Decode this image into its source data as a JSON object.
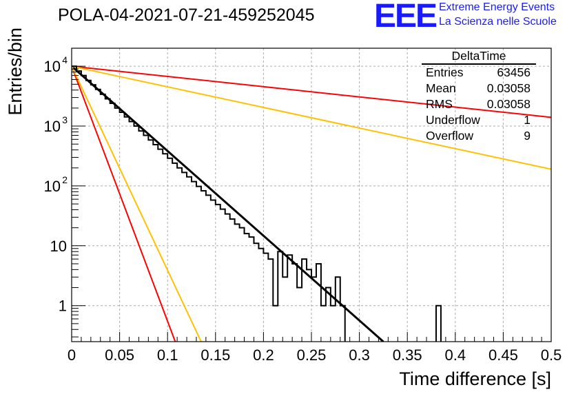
{
  "header": {
    "title": "POLA-04-2021-07-21-459252045",
    "logo_text": "EEE",
    "logo_line1": "Extreme Energy Events",
    "logo_line2": "La Scienza nelle Scuole"
  },
  "stats_box": {
    "title": "DeltaTime",
    "rows": [
      {
        "label": "Entries",
        "value": "63456"
      },
      {
        "label": "Mean",
        "value": "0.03058"
      },
      {
        "label": "RMS",
        "value": "0.03058"
      },
      {
        "label": "Underflow",
        "value": "1"
      },
      {
        "label": "Overflow",
        "value": "9"
      }
    ]
  },
  "chart_data": {
    "type": "line",
    "xlabel": "Time difference [s]",
    "ylabel": "Entries/bin",
    "xlim": [
      0,
      0.5
    ],
    "ylim": [
      0.25,
      20000
    ],
    "log_y": true,
    "grid": true,
    "x_ticks": [
      "0",
      "0.05",
      "0.1",
      "0.15",
      "0.2",
      "0.25",
      "0.3",
      "0.35",
      "0.4",
      "0.45",
      "0.5"
    ],
    "y_ticks": [
      {
        "value": 1,
        "label": "1"
      },
      {
        "value": 10,
        "label": "10"
      },
      {
        "value": 100,
        "label": "10",
        "exp": "2"
      },
      {
        "value": 1000,
        "label": "10",
        "exp": "3"
      },
      {
        "value": 10000,
        "label": "10",
        "exp": "4"
      }
    ],
    "histogram": {
      "color": "#000000",
      "bin_width": 0.005,
      "x0": 0,
      "counts": [
        10000,
        8300,
        7000,
        5800,
        4900,
        4100,
        3400,
        2850,
        2400,
        2000,
        1700,
        1420,
        1190,
        1000,
        830,
        700,
        585,
        490,
        410,
        345,
        290,
        240,
        200,
        168,
        142,
        118,
        98,
        83,
        70,
        58,
        49,
        41,
        34,
        28,
        23,
        20,
        16,
        14,
        11,
        9,
        7.5,
        6,
        1,
        8,
        3,
        7,
        5,
        2,
        6,
        4,
        3,
        5,
        1,
        2,
        1,
        3,
        1,
        0,
        0,
        0,
        0,
        0,
        0,
        0,
        0,
        0,
        0,
        0,
        0,
        0,
        0,
        0,
        0,
        0,
        0,
        0,
        1,
        0,
        0,
        0,
        0,
        0,
        0,
        0,
        0,
        0,
        0,
        0,
        0,
        0,
        0,
        0,
        0,
        0,
        0,
        0,
        0,
        0,
        0,
        0
      ]
    },
    "series": [
      {
        "color": "#000000",
        "x": [
          0,
          0.325
        ],
        "y": [
          10000,
          0.25
        ]
      },
      {
        "color": "#ff0000",
        "x": [
          0,
          0.5
        ],
        "y": [
          10000,
          1400
        ]
      },
      {
        "color": "#ffc000",
        "x": [
          0,
          0.5
        ],
        "y": [
          10000,
          190
        ]
      },
      {
        "color": "#ff0000",
        "x": [
          0,
          0.108
        ],
        "y": [
          10000,
          0.25
        ]
      },
      {
        "color": "#ffc000",
        "x": [
          0,
          0.135
        ],
        "y": [
          10000,
          0.25
        ]
      }
    ]
  }
}
